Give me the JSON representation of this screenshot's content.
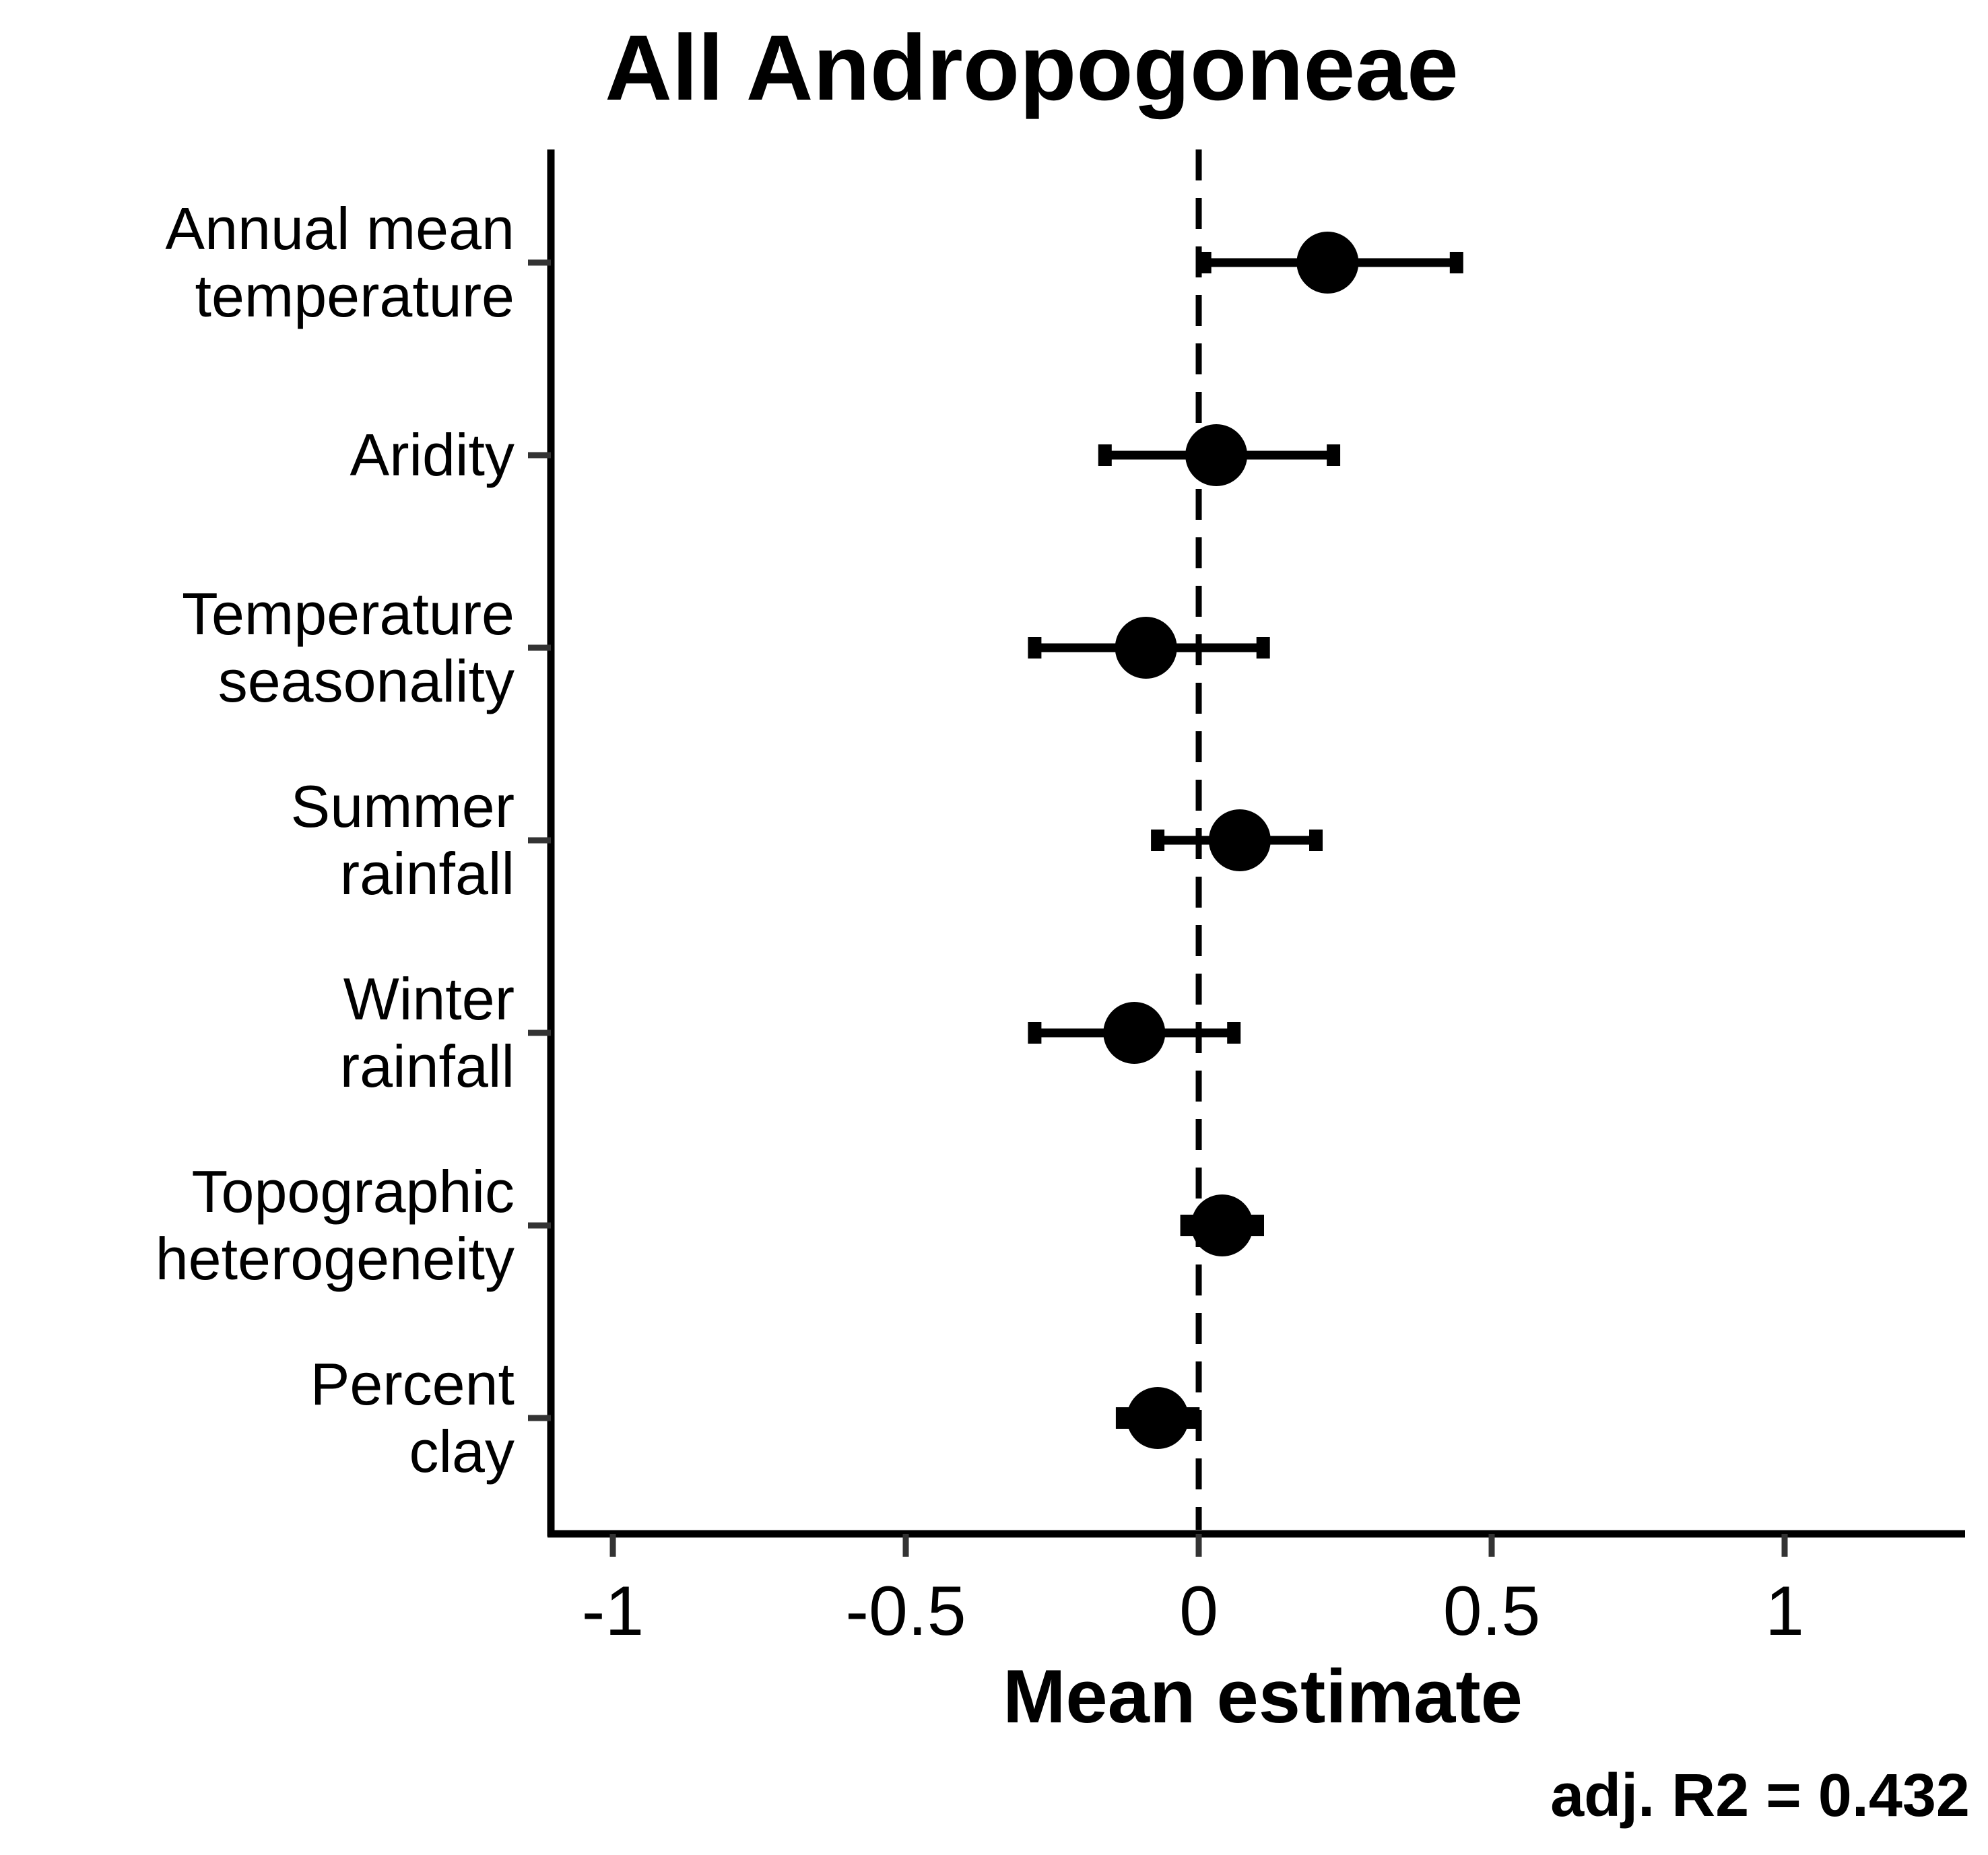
{
  "chart_data": {
    "type": "forest",
    "title": "All Andropogoneae",
    "xlabel": "Mean estimate",
    "ylabel": "",
    "xlim": [
      -1.11,
      1.3
    ],
    "x_ticks": [
      -1,
      -0.5,
      0,
      0.5,
      1
    ],
    "x_tick_labels": [
      "-1",
      "-0.5",
      "0",
      "0.5",
      "1"
    ],
    "reference_line": {
      "x": 0,
      "style": "dashed"
    },
    "grid": false,
    "annotation": "adj. R2 = 0.432",
    "categories": [
      {
        "label_lines": [
          "Annual mean",
          "temperature"
        ],
        "estimate": 0.22,
        "lower": 0.01,
        "upper": 0.44
      },
      {
        "label_lines": [
          "Aridity"
        ],
        "estimate": 0.03,
        "lower": -0.16,
        "upper": 0.23
      },
      {
        "label_lines": [
          "Temperature",
          "seasonality"
        ],
        "estimate": -0.09,
        "lower": -0.28,
        "upper": 0.11
      },
      {
        "label_lines": [
          "Summer",
          "rainfall"
        ],
        "estimate": 0.07,
        "lower": -0.07,
        "upper": 0.2
      },
      {
        "label_lines": [
          "Winter",
          "rainfall"
        ],
        "estimate": -0.11,
        "lower": -0.28,
        "upper": 0.06
      },
      {
        "label_lines": [
          "Topographic",
          "heterogeneity"
        ],
        "estimate": 0.04,
        "lower": -0.02,
        "upper": 0.1
      },
      {
        "label_lines": [
          "Percent",
          "clay"
        ],
        "estimate": -0.07,
        "lower": -0.13,
        "upper": -0.01
      }
    ],
    "colors": {
      "marks": "#000000",
      "axis": "#000000",
      "ticks": "#333333"
    }
  }
}
